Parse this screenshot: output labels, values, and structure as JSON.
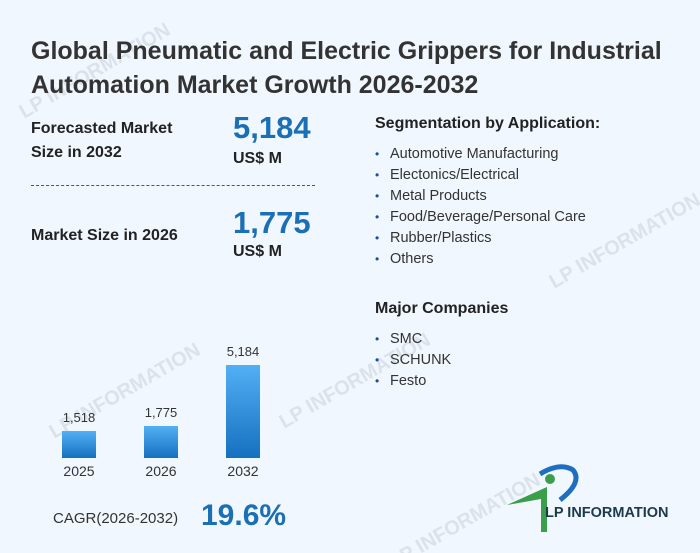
{
  "title": "Global Pneumatic and Electric Grippers for Industrial Automation Market Growth 2026-2032",
  "forecast": {
    "label": "Forecasted Market Size in 2032",
    "value": "5,184",
    "unit": "US$ M"
  },
  "current": {
    "label": "Market Size in 2026",
    "value": "1,775",
    "unit": "US$ M"
  },
  "segmentation": {
    "heading": "Segmentation by Application:",
    "items": [
      "Automotive Manufacturing",
      "Electonics/Electrical",
      "Metal Products",
      "Food/Beverage/Personal Care",
      "Rubber/Plastics",
      "Others"
    ]
  },
  "companies": {
    "heading": "Major Companies",
    "items": [
      "SMC",
      "SCHUNK",
      "Festo"
    ]
  },
  "cagr": {
    "label": "CAGR(2026-2032)",
    "value": "19.6%"
  },
  "logo": "LP INFORMATION",
  "watermark": "LP INFORMATION",
  "colors": {
    "accent": "#1a6fb5",
    "bar_top": "#52b0f5",
    "bar_bottom": "#1670bf"
  },
  "chart_data": {
    "type": "bar",
    "categories": [
      "2025",
      "2026",
      "2032"
    ],
    "values": [
      1518,
      1775,
      5184
    ],
    "value_labels": [
      "1,518",
      "1,775",
      "5,184"
    ],
    "title": "",
    "xlabel": "",
    "ylabel": "",
    "ylim": [
      0,
      5184
    ]
  }
}
